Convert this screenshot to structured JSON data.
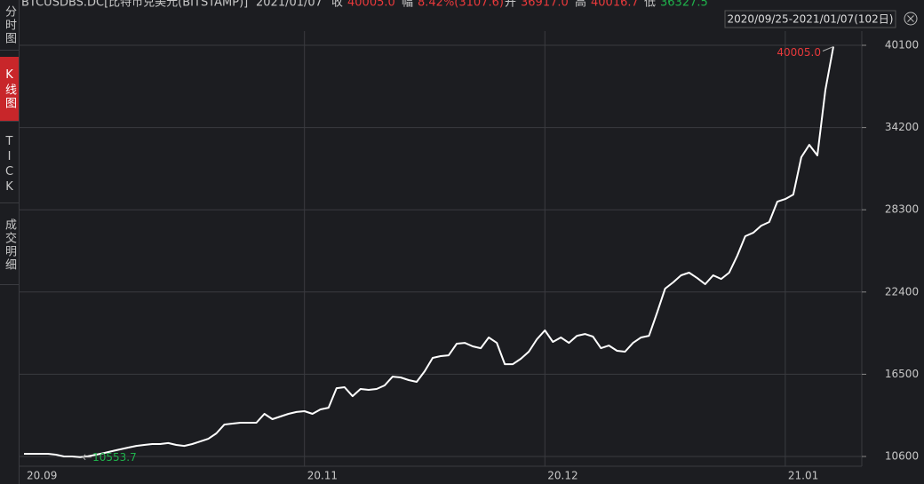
{
  "header": {
    "symbol": "BTCUSDBS.DC[比特币兑美元(BITSTAMP)]",
    "date": "2021/01/07",
    "close_label": "收",
    "close": "40005.0",
    "change_label": "幅",
    "change": "8.42%(3107.6)",
    "open_label": "开",
    "open": "36917.0",
    "high_label": "高",
    "high": "40016.7",
    "low_label": "低",
    "low": "36327.5"
  },
  "tabs": [
    "分时图",
    "K线图",
    "TICK",
    "成交明细"
  ],
  "active_tab": 1,
  "range_label": "2020/09/25-2021/01/07(102日)",
  "chart_data": {
    "type": "line",
    "color": "#ffffff",
    "grid": true,
    "categories": [
      "20.09",
      null,
      null,
      null,
      null,
      null,
      null,
      null,
      null,
      null,
      null,
      null,
      null,
      null,
      null,
      null,
      null,
      null,
      null,
      null,
      null,
      null,
      null,
      null,
      null,
      null,
      null,
      null,
      null,
      null,
      null,
      null,
      null,
      null,
      null,
      "20.11",
      null,
      null,
      null,
      null,
      null,
      null,
      null,
      null,
      null,
      null,
      null,
      null,
      null,
      null,
      null,
      null,
      null,
      null,
      null,
      null,
      null,
      null,
      null,
      null,
      null,
      null,
      null,
      null,
      null,
      "20.12",
      null,
      null,
      null,
      null,
      null,
      null,
      null,
      null,
      null,
      null,
      null,
      null,
      null,
      null,
      null,
      null,
      null,
      null,
      null,
      null,
      null,
      null,
      null,
      null,
      null,
      null,
      null,
      null,
      null,
      "21.01",
      null,
      null,
      null,
      null,
      null,
      null
    ],
    "values": [
      10790,
      10790,
      10790,
      10790,
      10730,
      10600,
      10600,
      10553.7,
      10620,
      10730,
      10850,
      10980,
      11110,
      11240,
      11360,
      11430,
      11490,
      11490,
      11560,
      11430,
      11360,
      11490,
      11680,
      11870,
      12260,
      12890,
      12960,
      13020,
      13020,
      13020,
      13660,
      13280,
      13470,
      13660,
      13790,
      13850,
      13660,
      13980,
      14100,
      15500,
      15570,
      14930,
      15440,
      15380,
      15440,
      15700,
      16330,
      16270,
      16080,
      15950,
      16720,
      17670,
      17800,
      17860,
      18690,
      18750,
      18500,
      18370,
      19140,
      18750,
      17220,
      17220,
      17610,
      18120,
      19010,
      19650,
      18820,
      19140,
      18750,
      19260,
      19390,
      19200,
      18370,
      18560,
      18180,
      18120,
      18750,
      19140,
      19260,
      20920,
      22640,
      23090,
      23600,
      23790,
      23400,
      22960,
      23600,
      23340,
      23790,
      25000,
      26400,
      26650,
      27160,
      27420,
      28880,
      29070,
      29390,
      32070,
      32960,
      32200,
      36897.4,
      40005.0
    ],
    "value_labels": [
      null,
      null,
      null,
      null,
      null,
      null,
      null,
      "10553.7",
      null,
      null,
      null,
      null,
      null,
      null,
      null,
      null,
      null,
      null,
      null,
      null,
      null,
      null,
      null,
      null,
      null,
      null,
      null,
      null,
      null,
      null,
      null,
      null,
      null,
      null,
      null,
      null,
      null,
      null,
      null,
      null,
      null,
      null,
      null,
      null,
      null,
      null,
      null,
      null,
      null,
      null,
      null,
      null,
      null,
      null,
      null,
      null,
      null,
      null,
      null,
      null,
      null,
      null,
      null,
      null,
      null,
      null,
      null,
      null,
      null,
      null,
      null,
      null,
      null,
      null,
      null,
      null,
      null,
      null,
      null,
      null,
      null,
      null,
      null,
      null,
      null,
      null,
      null,
      null,
      null,
      null,
      null,
      null,
      null,
      null,
      null,
      null,
      null,
      null,
      null,
      null,
      null,
      "40005.0"
    ],
    "ylim": [
      9900,
      41120
    ],
    "yticks": [
      10600,
      16500,
      22400,
      28300,
      34200,
      40100
    ]
  }
}
